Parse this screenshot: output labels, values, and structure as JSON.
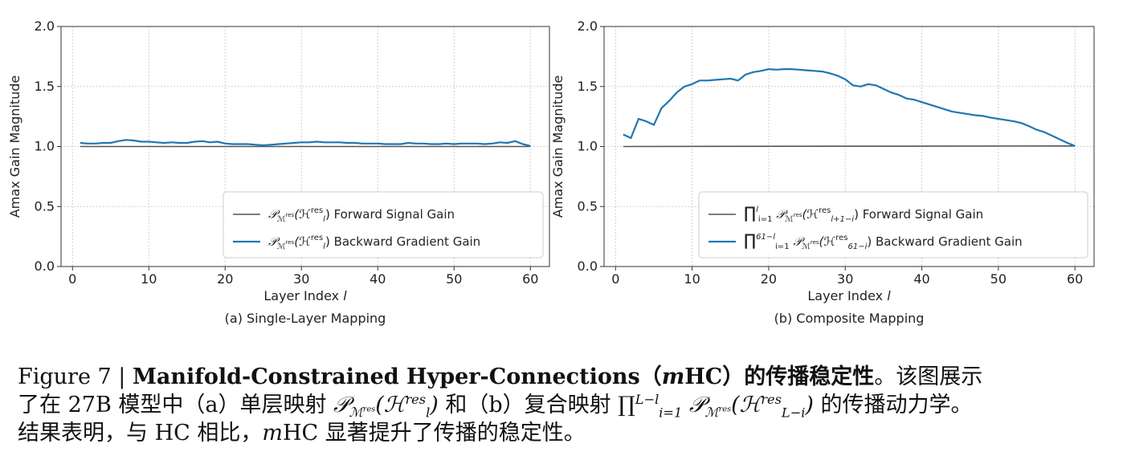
{
  "chart_data": [
    {
      "type": "line",
      "subtitle": "(a) Single-Layer Mapping",
      "xlabel": "Layer Index l",
      "ylabel": "Amax Gain Magnitude",
      "xlim": [
        -1.5,
        62.5
      ],
      "ylim": [
        0.0,
        2.0
      ],
      "xticks": [
        "0",
        "10",
        "20",
        "30",
        "40",
        "50",
        "60"
      ],
      "yticks": [
        "0.0",
        "0.5",
        "1.0",
        "1.5",
        "2.0"
      ],
      "grid": true,
      "legend_position": "lower-right",
      "series": [
        {
          "name": "𝒫ℳres(ℋlres) Forward Signal Gain",
          "color": "#555555",
          "x": [
            1,
            60
          ],
          "y": [
            1.0,
            1.0
          ]
        },
        {
          "name": "𝒫ℳres(ℋlres) Backward Gradient Gain",
          "color": "#1f77b4",
          "x": [
            1,
            2,
            3,
            4,
            5,
            6,
            7,
            8,
            9,
            10,
            11,
            12,
            13,
            14,
            15,
            16,
            17,
            18,
            19,
            20,
            21,
            22,
            23,
            24,
            25,
            26,
            27,
            28,
            29,
            30,
            31,
            32,
            33,
            34,
            35,
            36,
            37,
            38,
            39,
            40,
            41,
            42,
            43,
            44,
            45,
            46,
            47,
            48,
            49,
            50,
            51,
            52,
            53,
            54,
            55,
            56,
            57,
            58,
            59,
            60
          ],
          "y": [
            1.03,
            1.025,
            1.025,
            1.03,
            1.03,
            1.045,
            1.055,
            1.05,
            1.04,
            1.04,
            1.035,
            1.03,
            1.035,
            1.03,
            1.03,
            1.04,
            1.045,
            1.035,
            1.04,
            1.025,
            1.02,
            1.02,
            1.02,
            1.015,
            1.01,
            1.015,
            1.02,
            1.025,
            1.03,
            1.035,
            1.035,
            1.04,
            1.035,
            1.035,
            1.035,
            1.03,
            1.03,
            1.025,
            1.025,
            1.025,
            1.02,
            1.02,
            1.02,
            1.03,
            1.025,
            1.025,
            1.02,
            1.02,
            1.025,
            1.02,
            1.025,
            1.025,
            1.025,
            1.02,
            1.025,
            1.035,
            1.03,
            1.045,
            1.02,
            1.005
          ]
        }
      ]
    },
    {
      "type": "line",
      "subtitle": "(b) Composite Mapping",
      "xlabel": "Layer Index l",
      "ylabel": "Amax Gain Magnitude",
      "xlim": [
        -1.5,
        62.5
      ],
      "ylim": [
        0.0,
        2.0
      ],
      "xticks": [
        "0",
        "10",
        "20",
        "30",
        "40",
        "50",
        "60"
      ],
      "yticks": [
        "0.0",
        "0.5",
        "1.0",
        "1.5",
        "2.0"
      ],
      "grid": true,
      "legend_position": "lower-right",
      "series": [
        {
          "name": "∏ i=1..l 𝒫ℳres(ℋl+1−ires) Forward Signal Gain",
          "color": "#555555",
          "x": [
            1,
            60
          ],
          "y": [
            1.0,
            1.005
          ]
        },
        {
          "name": "∏ i=1..61−l 𝒫ℳres(ℋ61−ires) Backward Gradient Gain",
          "color": "#1f77b4",
          "x": [
            1,
            2,
            3,
            4,
            5,
            6,
            7,
            8,
            9,
            10,
            11,
            12,
            13,
            14,
            15,
            16,
            17,
            18,
            19,
            20,
            21,
            22,
            23,
            24,
            25,
            26,
            27,
            28,
            29,
            30,
            31,
            32,
            33,
            34,
            35,
            36,
            37,
            38,
            39,
            40,
            41,
            42,
            43,
            44,
            45,
            46,
            47,
            48,
            49,
            50,
            51,
            52,
            53,
            54,
            55,
            56,
            57,
            58,
            59,
            60
          ],
          "y": [
            1.1,
            1.07,
            1.23,
            1.21,
            1.18,
            1.32,
            1.38,
            1.45,
            1.5,
            1.52,
            1.55,
            1.55,
            1.555,
            1.56,
            1.565,
            1.55,
            1.6,
            1.62,
            1.63,
            1.645,
            1.64,
            1.645,
            1.645,
            1.64,
            1.635,
            1.63,
            1.625,
            1.61,
            1.59,
            1.56,
            1.51,
            1.5,
            1.52,
            1.51,
            1.48,
            1.45,
            1.43,
            1.4,
            1.39,
            1.37,
            1.35,
            1.33,
            1.31,
            1.29,
            1.28,
            1.27,
            1.26,
            1.255,
            1.24,
            1.23,
            1.22,
            1.21,
            1.195,
            1.17,
            1.14,
            1.12,
            1.09,
            1.06,
            1.03,
            1.005
          ]
        }
      ]
    }
  ],
  "caption": {
    "line1_prefix": "Figure 7 | ",
    "line1_bold_a": "Manifold-Constrained Hyper-Connections（",
    "line1_bold_m": "m",
    "line1_bold_b": "HC）的传播稳定性",
    "line1_rest": "。该图展示",
    "line2_a": "了在 27B 模型中（a）单层映射 ",
    "line2_map1": "𝒫",
    "line2_b": " 和（b）复合映射 ",
    "line2_c": " 的传播动力学。",
    "line3_a": "结果表明，与 HC 相比，",
    "line3_m": "m",
    "line3_b": "HC 显著提升了传播的稳定性。"
  }
}
